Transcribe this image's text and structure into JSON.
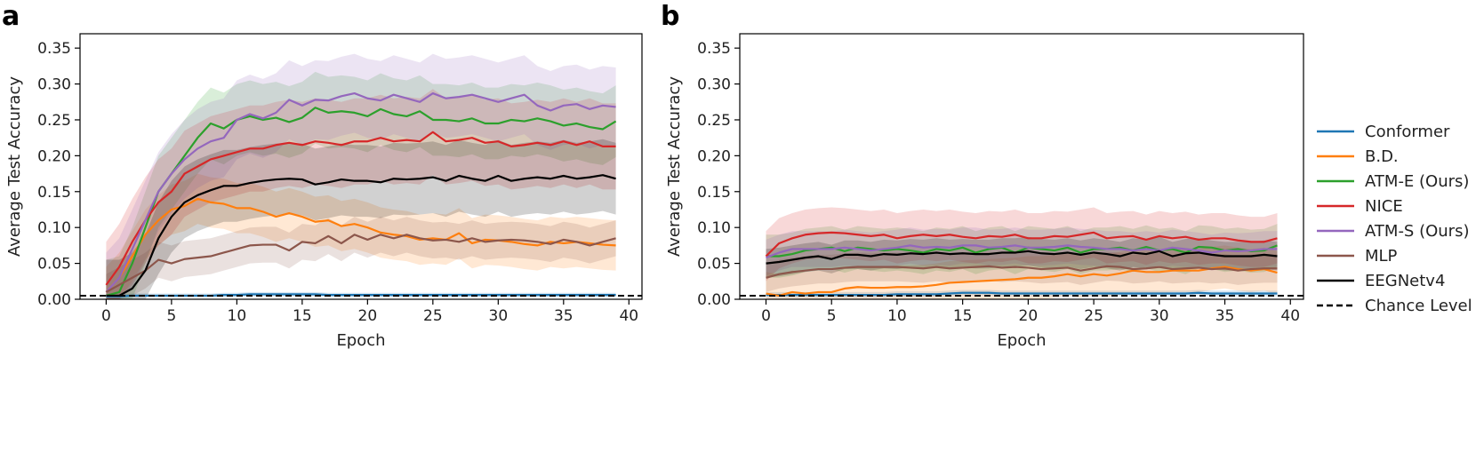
{
  "chart_data": [
    {
      "type": "line",
      "panel_label": "a",
      "xlabel": "Epoch",
      "ylabel": "Average Test Accuracy",
      "xlim": [
        -2,
        41
      ],
      "ylim": [
        0,
        0.37
      ],
      "xticks": [
        0,
        5,
        10,
        15,
        20,
        25,
        30,
        35,
        40
      ],
      "xtick_labels": [
        "0",
        "5",
        "10",
        "15",
        "20",
        "25",
        "30",
        "35",
        "40"
      ],
      "yticks": [
        0,
        0.05,
        0.1,
        0.15,
        0.2,
        0.25,
        0.3,
        0.35
      ],
      "ytick_labels": [
        "0.00",
        "0.05",
        "0.10",
        "0.15",
        "0.20",
        "0.25",
        "0.30",
        "0.35"
      ],
      "x": [
        0,
        1,
        2,
        3,
        4,
        5,
        6,
        7,
        8,
        9,
        10,
        11,
        12,
        13,
        14,
        15,
        16,
        17,
        18,
        19,
        20,
        21,
        22,
        23,
        24,
        25,
        26,
        27,
        28,
        29,
        30,
        31,
        32,
        33,
        34,
        35,
        36,
        37,
        38,
        39
      ],
      "chance_level": 0.005,
      "series": [
        {
          "name": "Conformer",
          "color": "#1f77b4",
          "band": 0.003,
          "values": [
            0.004,
            0.004,
            0.005,
            0.005,
            0.005,
            0.005,
            0.005,
            0.005,
            0.005,
            0.006,
            0.006,
            0.007,
            0.007,
            0.007,
            0.007,
            0.007,
            0.007,
            0.006,
            0.006,
            0.006,
            0.006,
            0.006,
            0.006,
            0.006,
            0.006,
            0.006,
            0.006,
            0.006,
            0.006,
            0.006,
            0.006,
            0.006,
            0.006,
            0.006,
            0.006,
            0.006,
            0.006,
            0.006,
            0.006,
            0.006
          ]
        },
        {
          "name": "B.D.",
          "color": "#ff7f0e",
          "band": 0.035,
          "values": [
            0.01,
            0.03,
            0.06,
            0.09,
            0.11,
            0.125,
            0.13,
            0.14,
            0.135,
            0.133,
            0.127,
            0.127,
            0.122,
            0.115,
            0.12,
            0.115,
            0.108,
            0.11,
            0.102,
            0.105,
            0.1,
            0.093,
            0.09,
            0.088,
            0.083,
            0.085,
            0.083,
            0.092,
            0.078,
            0.083,
            0.082,
            0.08,
            0.077,
            0.075,
            0.08,
            0.078,
            0.08,
            0.078,
            0.076,
            0.075
          ]
        },
        {
          "name": "ATM-E (Ours)",
          "color": "#2ca02c",
          "band": 0.05,
          "values": [
            0.005,
            0.01,
            0.05,
            0.1,
            0.15,
            0.175,
            0.2,
            0.225,
            0.245,
            0.238,
            0.25,
            0.255,
            0.25,
            0.253,
            0.247,
            0.253,
            0.267,
            0.26,
            0.262,
            0.26,
            0.255,
            0.265,
            0.258,
            0.255,
            0.262,
            0.25,
            0.25,
            0.248,
            0.252,
            0.245,
            0.245,
            0.25,
            0.248,
            0.252,
            0.248,
            0.242,
            0.245,
            0.24,
            0.237,
            0.248
          ]
        },
        {
          "name": "NICE",
          "color": "#d62728",
          "band": 0.06,
          "values": [
            0.02,
            0.045,
            0.08,
            0.11,
            0.135,
            0.15,
            0.175,
            0.185,
            0.195,
            0.2,
            0.205,
            0.21,
            0.21,
            0.215,
            0.218,
            0.215,
            0.22,
            0.218,
            0.215,
            0.22,
            0.22,
            0.225,
            0.22,
            0.222,
            0.22,
            0.233,
            0.22,
            0.222,
            0.225,
            0.218,
            0.22,
            0.213,
            0.215,
            0.218,
            0.215,
            0.22,
            0.215,
            0.22,
            0.213,
            0.213
          ]
        },
        {
          "name": "ATM-S (Ours)",
          "color": "#9467bd",
          "band": 0.055,
          "values": [
            0.01,
            0.03,
            0.07,
            0.11,
            0.15,
            0.175,
            0.195,
            0.21,
            0.22,
            0.225,
            0.25,
            0.258,
            0.252,
            0.26,
            0.278,
            0.27,
            0.278,
            0.277,
            0.283,
            0.287,
            0.28,
            0.277,
            0.285,
            0.28,
            0.275,
            0.287,
            0.28,
            0.282,
            0.285,
            0.28,
            0.275,
            0.28,
            0.285,
            0.27,
            0.263,
            0.27,
            0.272,
            0.265,
            0.27,
            0.268
          ]
        },
        {
          "name": "MLP",
          "color": "#8c564b",
          "band": 0.025,
          "values": [
            0.01,
            0.02,
            0.03,
            0.04,
            0.055,
            0.05,
            0.056,
            0.058,
            0.06,
            0.065,
            0.07,
            0.075,
            0.076,
            0.076,
            0.068,
            0.08,
            0.078,
            0.088,
            0.078,
            0.09,
            0.083,
            0.09,
            0.085,
            0.09,
            0.085,
            0.082,
            0.083,
            0.08,
            0.085,
            0.08,
            0.082,
            0.083,
            0.082,
            0.08,
            0.077,
            0.083,
            0.08,
            0.075,
            0.08,
            0.085
          ]
        },
        {
          "name": "EEGNetv4",
          "color": "#000000",
          "band": 0.05,
          "values": [
            0.005,
            0.005,
            0.015,
            0.04,
            0.085,
            0.115,
            0.135,
            0.145,
            0.152,
            0.158,
            0.158,
            0.162,
            0.165,
            0.167,
            0.168,
            0.167,
            0.16,
            0.163,
            0.167,
            0.165,
            0.165,
            0.163,
            0.168,
            0.167,
            0.168,
            0.17,
            0.165,
            0.172,
            0.168,
            0.165,
            0.172,
            0.165,
            0.168,
            0.17,
            0.168,
            0.172,
            0.168,
            0.17,
            0.173,
            0.168
          ]
        }
      ]
    },
    {
      "type": "line",
      "panel_label": "b",
      "xlabel": "Epoch",
      "ylabel": "Average Test Accuracy",
      "xlim": [
        -2,
        41
      ],
      "ylim": [
        0,
        0.37
      ],
      "xticks": [
        0,
        5,
        10,
        15,
        20,
        25,
        30,
        35,
        40
      ],
      "xtick_labels": [
        "0",
        "5",
        "10",
        "15",
        "20",
        "25",
        "30",
        "35",
        "40"
      ],
      "yticks": [
        0,
        0.05,
        0.1,
        0.15,
        0.2,
        0.25,
        0.3,
        0.35
      ],
      "ytick_labels": [
        "0.00",
        "0.05",
        "0.10",
        "0.15",
        "0.20",
        "0.25",
        "0.30",
        "0.35"
      ],
      "x": [
        0,
        1,
        2,
        3,
        4,
        5,
        6,
        7,
        8,
        9,
        10,
        11,
        12,
        13,
        14,
        15,
        16,
        17,
        18,
        19,
        20,
        21,
        22,
        23,
        24,
        25,
        26,
        27,
        28,
        29,
        30,
        31,
        32,
        33,
        34,
        35,
        36,
        37,
        38,
        39
      ],
      "chance_level": 0.005,
      "series": [
        {
          "name": "Conformer",
          "color": "#1f77b4",
          "band": 0.004,
          "values": [
            0.006,
            0.006,
            0.006,
            0.006,
            0.006,
            0.006,
            0.006,
            0.006,
            0.006,
            0.006,
            0.007,
            0.007,
            0.007,
            0.007,
            0.008,
            0.009,
            0.009,
            0.009,
            0.008,
            0.008,
            0.008,
            0.008,
            0.008,
            0.008,
            0.008,
            0.008,
            0.008,
            0.008,
            0.008,
            0.008,
            0.008,
            0.008,
            0.008,
            0.009,
            0.008,
            0.008,
            0.008,
            0.008,
            0.008,
            0.008
          ]
        },
        {
          "name": "B.D.",
          "color": "#ff7f0e",
          "band": 0.03,
          "values": [
            0.008,
            0.005,
            0.01,
            0.008,
            0.01,
            0.01,
            0.015,
            0.017,
            0.016,
            0.016,
            0.017,
            0.017,
            0.018,
            0.02,
            0.023,
            0.024,
            0.025,
            0.026,
            0.027,
            0.028,
            0.03,
            0.03,
            0.032,
            0.035,
            0.032,
            0.035,
            0.033,
            0.036,
            0.04,
            0.038,
            0.038,
            0.04,
            0.04,
            0.04,
            0.043,
            0.045,
            0.042,
            0.04,
            0.042,
            0.037
          ]
        },
        {
          "name": "ATM-E (Ours)",
          "color": "#2ca02c",
          "band": 0.03,
          "values": [
            0.06,
            0.06,
            0.063,
            0.068,
            0.07,
            0.072,
            0.067,
            0.072,
            0.07,
            0.068,
            0.07,
            0.068,
            0.065,
            0.07,
            0.068,
            0.072,
            0.065,
            0.07,
            0.072,
            0.065,
            0.072,
            0.07,
            0.068,
            0.072,
            0.065,
            0.07,
            0.07,
            0.072,
            0.068,
            0.073,
            0.068,
            0.07,
            0.065,
            0.073,
            0.072,
            0.068,
            0.07,
            0.067,
            0.068,
            0.075
          ]
        },
        {
          "name": "NICE",
          "color": "#d62728",
          "band": 0.035,
          "values": [
            0.06,
            0.078,
            0.085,
            0.09,
            0.092,
            0.093,
            0.092,
            0.09,
            0.088,
            0.09,
            0.085,
            0.088,
            0.09,
            0.088,
            0.09,
            0.087,
            0.085,
            0.088,
            0.087,
            0.09,
            0.085,
            0.085,
            0.088,
            0.087,
            0.09,
            0.093,
            0.085,
            0.087,
            0.088,
            0.083,
            0.088,
            0.085,
            0.087,
            0.083,
            0.085,
            0.085,
            0.082,
            0.08,
            0.08,
            0.085
          ]
        },
        {
          "name": "ATM-S (Ours)",
          "color": "#9467bd",
          "band": 0.025,
          "values": [
            0.058,
            0.065,
            0.07,
            0.07,
            0.07,
            0.07,
            0.072,
            0.07,
            0.068,
            0.07,
            0.072,
            0.075,
            0.072,
            0.073,
            0.072,
            0.075,
            0.075,
            0.072,
            0.073,
            0.075,
            0.072,
            0.072,
            0.073,
            0.075,
            0.073,
            0.072,
            0.07,
            0.07,
            0.068,
            0.07,
            0.068,
            0.072,
            0.07,
            0.068,
            0.065,
            0.068,
            0.067,
            0.068,
            0.07,
            0.07
          ]
        },
        {
          "name": "MLP",
          "color": "#8c564b",
          "band": 0.02,
          "values": [
            0.03,
            0.035,
            0.038,
            0.04,
            0.042,
            0.042,
            0.044,
            0.045,
            0.045,
            0.045,
            0.045,
            0.044,
            0.043,
            0.045,
            0.043,
            0.044,
            0.045,
            0.046,
            0.044,
            0.045,
            0.044,
            0.042,
            0.043,
            0.044,
            0.04,
            0.043,
            0.046,
            0.045,
            0.042,
            0.043,
            0.045,
            0.042,
            0.043,
            0.044,
            0.042,
            0.043,
            0.04,
            0.042,
            0.043,
            0.043
          ]
        },
        {
          "name": "EEGNetv4",
          "color": "#000000",
          "band": 0.02,
          "values": [
            0.05,
            0.052,
            0.055,
            0.058,
            0.06,
            0.056,
            0.062,
            0.062,
            0.06,
            0.063,
            0.062,
            0.064,
            0.063,
            0.065,
            0.063,
            0.064,
            0.063,
            0.063,
            0.065,
            0.065,
            0.067,
            0.064,
            0.063,
            0.065,
            0.062,
            0.065,
            0.063,
            0.06,
            0.065,
            0.063,
            0.067,
            0.06,
            0.064,
            0.065,
            0.062,
            0.06,
            0.06,
            0.06,
            0.062,
            0.06
          ]
        }
      ]
    }
  ],
  "legend": {
    "placement": "right",
    "items": [
      {
        "label": "Conformer",
        "color": "#1f77b4",
        "style": "solid"
      },
      {
        "label": "B.D.",
        "color": "#ff7f0e",
        "style": "solid"
      },
      {
        "label": "ATM-E (Ours)",
        "color": "#2ca02c",
        "style": "solid"
      },
      {
        "label": "NICE",
        "color": "#d62728",
        "style": "solid"
      },
      {
        "label": "ATM-S (Ours)",
        "color": "#9467bd",
        "style": "solid"
      },
      {
        "label": "MLP",
        "color": "#8c564b",
        "style": "solid"
      },
      {
        "label": "EEGNetv4",
        "color": "#000000",
        "style": "solid"
      },
      {
        "label": "Chance Level",
        "color": "#000000",
        "style": "dashed"
      }
    ]
  }
}
